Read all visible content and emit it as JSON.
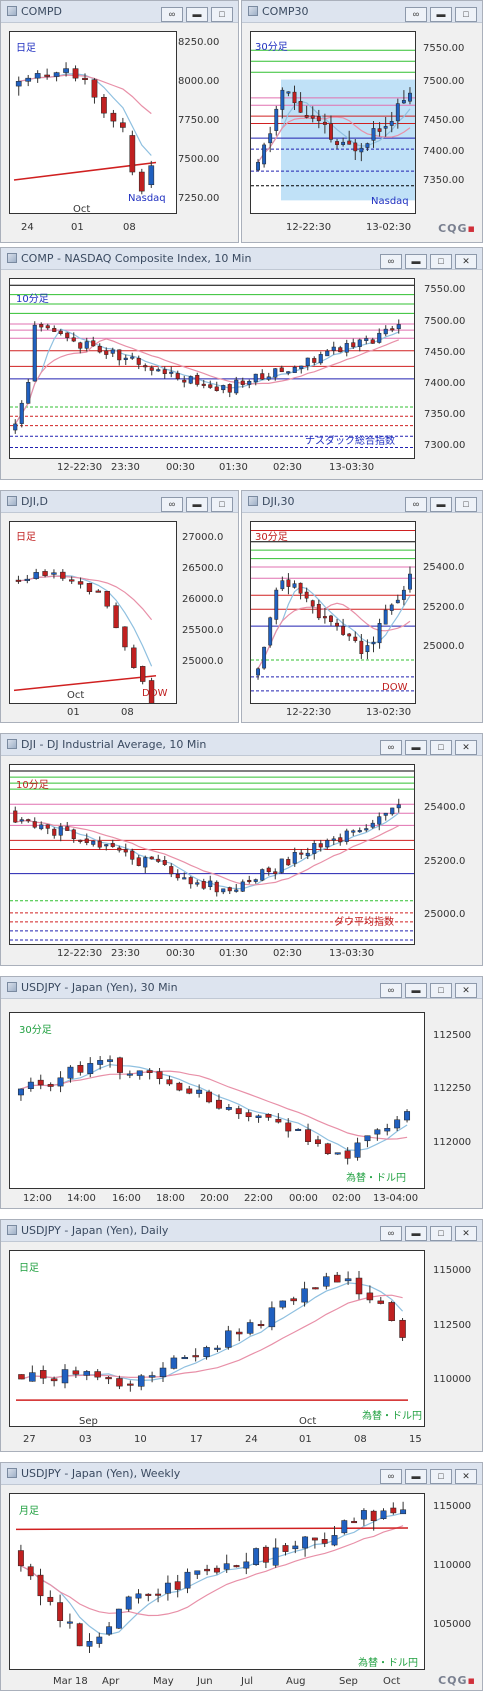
{
  "windows": [
    {
      "id": "w1",
      "title": "COMPD",
      "period": "日足",
      "note": "Nasdaq",
      "yticks": [
        "8250.00",
        "8000.00",
        "7750.00",
        "7500.00",
        "7250.00"
      ],
      "xticks": [
        "24",
        "01",
        "08"
      ],
      "xtop": "Oct",
      "logo": "CQG"
    },
    {
      "id": "w2",
      "title": "COMP30",
      "period": "30分足",
      "note": "Nasdaq",
      "yticks": [
        "7550.00",
        "7500.00",
        "7450.00",
        "7400.00",
        "7350.00"
      ],
      "xticks": [
        "12-22:30",
        "13-02:30"
      ],
      "logo": "CQG"
    },
    {
      "id": "w3",
      "title": "COMP - NASDAQ Composite Index, 10 Min",
      "period": "10分足",
      "note": "ナスダック総合指数",
      "yticks": [
        "7550.00",
        "7500.00",
        "7450.00",
        "7400.00",
        "7350.00",
        "7300.00"
      ],
      "xticks": [
        "12-22:30",
        "23:30",
        "00:30",
        "01:30",
        "02:30",
        "13-03:30"
      ]
    },
    {
      "id": "w4",
      "title": "DJI,D",
      "period": "日足",
      "note": "DOW",
      "yticks": [
        "27000.0",
        "26500.0",
        "26000.0",
        "25500.0",
        "25000.0"
      ],
      "xticks": [
        "01",
        "08"
      ],
      "xtop": "Oct"
    },
    {
      "id": "w5",
      "title": "DJI,30",
      "period": "30分足",
      "note": "DOW",
      "yticks": [
        "25400.0",
        "25200.0",
        "25000.0"
      ],
      "xticks": [
        "12-22:30",
        "13-02:30"
      ]
    },
    {
      "id": "w6",
      "title": "DJI - DJ Industrial Average, 10 Min",
      "period": "10分足",
      "note": "ダウ平均指数",
      "yticks": [
        "25400.0",
        "25200.0",
        "25000.0"
      ],
      "xticks": [
        "12-22:30",
        "23:30",
        "00:30",
        "01:30",
        "02:30",
        "13-03:30"
      ]
    },
    {
      "id": "w7",
      "title": "USDJPY - Japan (Yen), 30 Min",
      "period": "30分足",
      "note": "為替・ドル円",
      "yticks": [
        "112500",
        "112250",
        "112000"
      ],
      "xticks": [
        "12:00",
        "14:00",
        "16:00",
        "18:00",
        "20:00",
        "22:00",
        "00:00",
        "02:00",
        "13-04:00"
      ]
    },
    {
      "id": "w8",
      "title": "USDJPY - Japan (Yen), Daily",
      "period": "日足",
      "note": "為替・ドル円",
      "yticks": [
        "115000",
        "112500",
        "110000"
      ],
      "xticks": [
        "27",
        "03",
        "10",
        "17",
        "24",
        "01",
        "08",
        "15"
      ],
      "xtop": "Sep",
      "xtop2": "Oct"
    },
    {
      "id": "w9",
      "title": "USDJPY - Japan (Yen), Weekly",
      "period": "月足",
      "note": "為替・ドル円",
      "yticks": [
        "115000",
        "110000",
        "105000"
      ],
      "xticks": [
        "Mar 18",
        "Apr",
        "May",
        "Jun",
        "Jul",
        "Aug",
        "Sep",
        "Oct"
      ],
      "logo": "CQG"
    }
  ],
  "chart_data": [
    {
      "type": "candlestick",
      "title": "COMPD",
      "ylim": [
        7150,
        8300
      ],
      "series": [
        {
          "o": 7960,
          "h": 8020,
          "l": 7900,
          "c": 7990
        },
        {
          "o": 7990,
          "h": 8030,
          "l": 7960,
          "c": 8010
        },
        {
          "o": 8010,
          "h": 8060,
          "l": 7980,
          "c": 8040
        },
        {
          "o": 8030,
          "h": 8070,
          "l": 8000,
          "c": 8020
        },
        {
          "o": 8020,
          "h": 8050,
          "l": 7990,
          "c": 8045
        },
        {
          "o": 8045,
          "h": 8110,
          "l": 8020,
          "c": 8070
        },
        {
          "o": 8070,
          "h": 8090,
          "l": 7990,
          "c": 8010
        },
        {
          "o": 8010,
          "h": 8040,
          "l": 7970,
          "c": 8000
        },
        {
          "o": 8000,
          "h": 8010,
          "l": 7850,
          "c": 7890
        },
        {
          "o": 7890,
          "h": 7910,
          "l": 7760,
          "c": 7790
        },
        {
          "o": 7790,
          "h": 7810,
          "l": 7700,
          "c": 7740
        },
        {
          "o": 7730,
          "h": 7760,
          "l": 7670,
          "c": 7700
        },
        {
          "o": 7650,
          "h": 7680,
          "l": 7400,
          "c": 7420
        },
        {
          "o": 7420,
          "h": 7440,
          "l": 7280,
          "c": 7300
        },
        {
          "o": 7340,
          "h": 7490,
          "l": 7320,
          "c": 7460
        }
      ]
    },
    {
      "type": "candlestick",
      "title": "COMP30",
      "ylim": [
        7320,
        7570
      ],
      "series": []
    },
    {
      "type": "candlestick",
      "title": "COMP 10 Min",
      "ylim": [
        7280,
        7570
      ],
      "series": []
    },
    {
      "type": "candlestick",
      "title": "DJI,D",
      "ylim": [
        24800,
        27300
      ],
      "series": []
    },
    {
      "type": "candlestick",
      "title": "DJI,30",
      "ylim": [
        24900,
        25550
      ],
      "series": []
    },
    {
      "type": "candlestick",
      "title": "DJI 10 Min",
      "ylim": [
        24900,
        25500
      ],
      "series": []
    },
    {
      "type": "candlestick",
      "title": "USDJPY 30 Min",
      "ylim": [
        111800,
        112700
      ],
      "series": []
    },
    {
      "type": "candlestick",
      "title": "USDJPY Daily",
      "ylim": [
        108800,
        115800
      ],
      "series": []
    },
    {
      "type": "candlestick",
      "title": "USDJPY Weekly",
      "ylim": [
        103500,
        116000
      ],
      "series": []
    }
  ],
  "colors": {
    "up": "#2060c0",
    "down": "#c02020",
    "ma_short": "#8fc0e0",
    "ma_mid": "#e890a8",
    "ma_long": "#d02020",
    "titlebar": "#dde4ef",
    "highlight": "#8cc8f0"
  }
}
